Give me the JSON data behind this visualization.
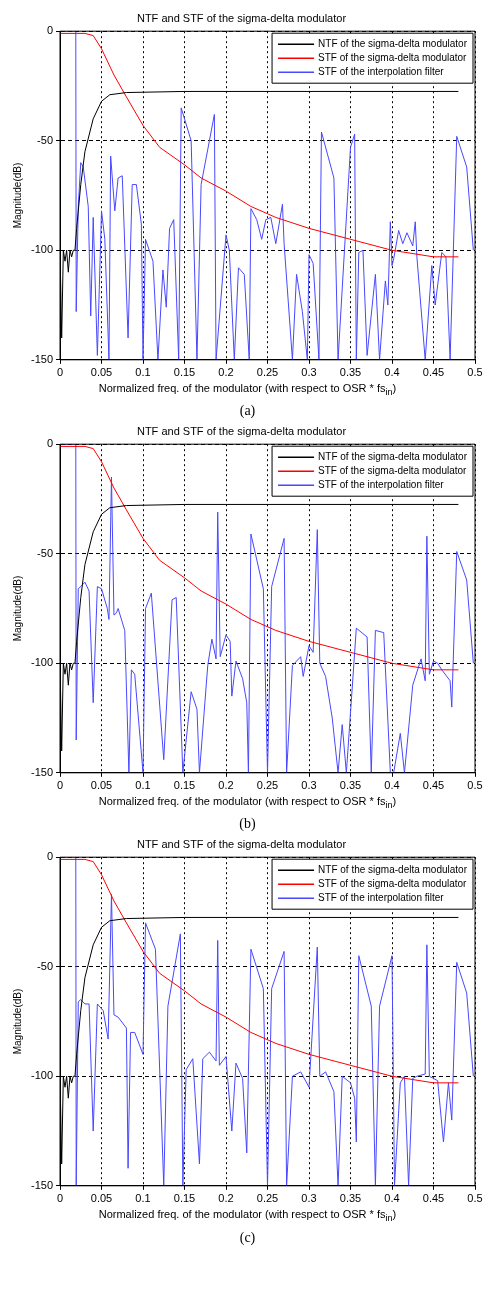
{
  "chart_data": [
    {
      "type": "line",
      "title": "NTF and STF of the sigma-delta modulator",
      "xlabel": "Normalized freq. of the modulator (with respect to OSR * fs$_{in}$)",
      "ylabel": "Magnitude(dB)",
      "xlim": [
        0,
        0.5
      ],
      "xticks": [
        0,
        0.05,
        0.1,
        0.15,
        0.2,
        0.25,
        0.3,
        0.35,
        0.4,
        0.45,
        0.5
      ],
      "ylim": [
        -150,
        0
      ],
      "yticks": [
        -150,
        -100,
        -50,
        0
      ],
      "grid": true,
      "legend": "top right",
      "marker": "none",
      "annotations": [
        "(a)"
      ],
      "series": [
        {
          "name": "NTF of the sigma-delta modulator",
          "color": "#000000",
          "x": [
            0,
            0.002,
            0.004,
            0.006,
            0.008,
            0.01,
            0.012,
            0.014,
            0.016,
            0.018,
            0.02,
            0.025,
            0.03,
            0.04,
            0.05,
            0.06,
            0.08,
            0.15,
            0.48
          ],
          "values": [
            -100,
            -140,
            -100,
            -105,
            -100,
            -110,
            -100,
            -103,
            -100,
            -100,
            -90,
            -70,
            -55,
            -40,
            -32,
            -29,
            -28,
            -27.5,
            -27.5
          ]
        },
        {
          "name": "STF of the sigma-delta modulator",
          "color": "#ff0000",
          "x": [
            0,
            0.03,
            0.04,
            0.05,
            0.065,
            0.08,
            0.1,
            0.12,
            0.15,
            0.17,
            0.2,
            0.23,
            0.26,
            0.3,
            0.35,
            0.4,
            0.45,
            0.48
          ],
          "values": [
            -1,
            -1,
            -2,
            -8,
            -20,
            -30,
            -43,
            -53,
            -61,
            -67,
            -73,
            -80,
            -85,
            -90,
            -95,
            -100,
            -103,
            -103
          ]
        },
        {
          "name": "STF of the interpolation filter",
          "color": "#4848ff",
          "x": [
            0,
            0.019,
            0.0195,
            0.022,
            0.025,
            0.028,
            0.034,
            0.037,
            0.04,
            0.045,
            0.05,
            0.054,
            0.059,
            0.061,
            0.066,
            0.07,
            0.075,
            0.082,
            0.087,
            0.092,
            0.098,
            0.1,
            0.103,
            0.112,
            0.118,
            0.124,
            0.128,
            0.132,
            0.137,
            0.143,
            0.146,
            0.158,
            0.165,
            0.17,
            0.186,
            0.188,
            0.2,
            0.204,
            0.21,
            0.215,
            0.222,
            0.228,
            0.23,
            0.237,
            0.243,
            0.248,
            0.254,
            0.26,
            0.268,
            0.27,
            0.28,
            0.285,
            0.292,
            0.298,
            0.3,
            0.305,
            0.312,
            0.315,
            0.33,
            0.335,
            0.35,
            0.355,
            0.357,
            0.36,
            0.365,
            0.37,
            0.38,
            0.385,
            0.392,
            0.395,
            0.398,
            0.4,
            0.402,
            0.408,
            0.413,
            0.418,
            0.425,
            0.428,
            0.43,
            0.44,
            0.448,
            0.452,
            0.46,
            0.465,
            0.47,
            0.478,
            0.49,
            0.498
          ],
          "values": [
            0,
            0,
            -128,
            -80,
            -60,
            -62,
            -80,
            -130,
            -85,
            -148,
            -82,
            -95,
            -150,
            -57,
            -82,
            -67,
            -66,
            -140,
            -70,
            -70,
            -88,
            -150,
            -95,
            -105,
            -150,
            -109,
            -126,
            -90,
            -86,
            -150,
            -35,
            -50,
            -150,
            -70,
            -38,
            -150,
            -93,
            -100,
            -150,
            -108,
            -111,
            -150,
            -81,
            -86,
            -95,
            -86,
            -85,
            -97,
            -79,
            -97,
            -150,
            -111,
            -128,
            -150,
            -102,
            -106,
            -150,
            -46,
            -67,
            -150,
            -53,
            -47,
            -150,
            -101,
            -100,
            -148,
            -111,
            -150,
            -114,
            -125,
            -87,
            -107,
            -104,
            -91,
            -97,
            -92,
            -98,
            -87,
            -103,
            -150,
            -107,
            -125,
            -101,
            -103,
            -150,
            -48,
            -62,
            -100
          ]
        }
      ]
    },
    {
      "type": "line",
      "title": "NTF and STF of the sigma-delta modulator",
      "xlabel": "Normalized freq. of the modulator (with respect to OSR * fs$_{in}$)",
      "ylabel": "Magnitude(dB)",
      "xlim": [
        0,
        0.5
      ],
      "xticks": [
        0,
        0.05,
        0.1,
        0.15,
        0.2,
        0.25,
        0.3,
        0.35,
        0.4,
        0.45,
        0.5
      ],
      "ylim": [
        -150,
        0
      ],
      "yticks": [
        -150,
        -100,
        -50,
        0
      ],
      "grid": true,
      "legend": "top right",
      "marker": "none",
      "annotations": [
        "(b)"
      ],
      "series": [
        {
          "name": "NTF of the sigma-delta modulator",
          "color": "#000000",
          "x": [
            0,
            0.002,
            0.004,
            0.006,
            0.008,
            0.01,
            0.012,
            0.014,
            0.016,
            0.018,
            0.02,
            0.025,
            0.03,
            0.04,
            0.05,
            0.06,
            0.08,
            0.15,
            0.48
          ],
          "values": [
            -100,
            -140,
            -100,
            -105,
            -100,
            -110,
            -100,
            -103,
            -100,
            -100,
            -90,
            -70,
            -55,
            -40,
            -32,
            -29,
            -28,
            -27.5,
            -27.5
          ]
        },
        {
          "name": "STF of the sigma-delta modulator",
          "color": "#ff0000",
          "x": [
            0,
            0.03,
            0.04,
            0.05,
            0.065,
            0.08,
            0.1,
            0.12,
            0.15,
            0.17,
            0.2,
            0.23,
            0.26,
            0.3,
            0.35,
            0.4,
            0.45,
            0.48
          ],
          "values": [
            -1,
            -1,
            -2,
            -8,
            -20,
            -30,
            -43,
            -53,
            -61,
            -67,
            -73,
            -80,
            -85,
            -90,
            -95,
            -100,
            -103,
            -103
          ]
        },
        {
          "name": "STF of the interpolation filter",
          "color": "#4848ff",
          "x": [
            0,
            0.019,
            0.0195,
            0.022,
            0.025,
            0.03,
            0.035,
            0.04,
            0.045,
            0.05,
            0.057,
            0.059,
            0.062,
            0.065,
            0.068,
            0.07,
            0.078,
            0.083,
            0.086,
            0.09,
            0.1,
            0.103,
            0.11,
            0.125,
            0.135,
            0.14,
            0.148,
            0.158,
            0.165,
            0.168,
            0.178,
            0.183,
            0.188,
            0.19,
            0.193,
            0.2,
            0.205,
            0.207,
            0.212,
            0.22,
            0.225,
            0.227,
            0.23,
            0.245,
            0.25,
            0.255,
            0.27,
            0.273,
            0.28,
            0.29,
            0.293,
            0.3,
            0.305,
            0.31,
            0.313,
            0.32,
            0.328,
            0.335,
            0.34,
            0.345,
            0.357,
            0.37,
            0.375,
            0.38,
            0.39,
            0.398,
            0.402,
            0.41,
            0.415,
            0.425,
            0.435,
            0.44,
            0.442,
            0.445,
            0.45,
            0.455,
            0.46,
            0.47,
            0.472,
            0.478,
            0.49,
            0.498
          ],
          "values": [
            0,
            0,
            -135,
            -66,
            -65,
            -63,
            -67,
            -118,
            -65,
            -66,
            -75,
            -80,
            -15,
            -78,
            -77,
            -75,
            -85,
            -150,
            -103,
            -105,
            -150,
            -75,
            -68,
            -144,
            -71,
            -70,
            -150,
            -113,
            -121,
            -150,
            -101,
            -89,
            -98,
            -31,
            -97,
            -87,
            -90,
            -115,
            -99,
            -107,
            -118,
            -150,
            -41,
            -66,
            -150,
            -65,
            -43,
            -150,
            -101,
            -97,
            -106,
            -92,
            -95,
            -39,
            -100,
            -106,
            -125,
            -150,
            -128,
            -150,
            -84,
            -88,
            -150,
            -85,
            -86,
            -150,
            -150,
            -132,
            -150,
            -110,
            -98,
            -108,
            -42,
            -105,
            -99,
            -100,
            -103,
            -108,
            -120,
            -49,
            -62,
            -100
          ]
        }
      ]
    },
    {
      "type": "line",
      "title": "NTF and STF of the sigma-delta modulator",
      "xlabel": "Normalized freq. of the modulator (with respect to OSR * fs$_{in}$)",
      "ylabel": "Magnitude(dB)",
      "xlim": [
        0,
        0.5
      ],
      "xticks": [
        0,
        0.05,
        0.1,
        0.15,
        0.2,
        0.25,
        0.3,
        0.35,
        0.4,
        0.45,
        0.5
      ],
      "ylim": [
        -150,
        0
      ],
      "yticks": [
        -150,
        -100,
        -50,
        0
      ],
      "grid": true,
      "legend": "top right",
      "marker": "none",
      "annotations": [
        "(c)"
      ],
      "series": [
        {
          "name": "NTF of the sigma-delta modulator",
          "color": "#000000",
          "x": [
            0,
            0.002,
            0.004,
            0.006,
            0.008,
            0.01,
            0.012,
            0.014,
            0.016,
            0.018,
            0.02,
            0.025,
            0.03,
            0.04,
            0.05,
            0.06,
            0.08,
            0.15,
            0.48
          ],
          "values": [
            -100,
            -140,
            -100,
            -105,
            -100,
            -110,
            -100,
            -103,
            -100,
            -100,
            -90,
            -70,
            -55,
            -40,
            -32,
            -29,
            -28,
            -27.5,
            -27.5
          ]
        },
        {
          "name": "STF of the sigma-delta modulator",
          "color": "#ff0000",
          "x": [
            0,
            0.03,
            0.04,
            0.05,
            0.065,
            0.08,
            0.1,
            0.12,
            0.15,
            0.17,
            0.2,
            0.23,
            0.26,
            0.3,
            0.35,
            0.4,
            0.45,
            0.48
          ],
          "values": [
            -1,
            -1,
            -2,
            -8,
            -20,
            -30,
            -43,
            -53,
            -61,
            -67,
            -73,
            -80,
            -85,
            -90,
            -95,
            -100,
            -103,
            -103
          ]
        },
        {
          "name": "STF of the interpolation filter",
          "color": "#4848ff",
          "x": [
            0,
            0.019,
            0.0195,
            0.022,
            0.025,
            0.03,
            0.035,
            0.04,
            0.045,
            0.052,
            0.058,
            0.062,
            0.065,
            0.07,
            0.08,
            0.082,
            0.085,
            0.09,
            0.1,
            0.103,
            0.115,
            0.125,
            0.13,
            0.145,
            0.148,
            0.152,
            0.16,
            0.168,
            0.172,
            0.18,
            0.188,
            0.19,
            0.192,
            0.2,
            0.207,
            0.212,
            0.22,
            0.225,
            0.23,
            0.245,
            0.25,
            0.255,
            0.27,
            0.273,
            0.28,
            0.29,
            0.3,
            0.31,
            0.313,
            0.32,
            0.33,
            0.335,
            0.34,
            0.35,
            0.355,
            0.357,
            0.36,
            0.375,
            0.38,
            0.385,
            0.4,
            0.403,
            0.41,
            0.415,
            0.42,
            0.425,
            0.43,
            0.44,
            0.442,
            0.445,
            0.455,
            0.462,
            0.468,
            0.472,
            0.478,
            0.49,
            0.498
          ],
          "values": [
            0,
            0,
            -150,
            -66,
            -65,
            -67,
            -67,
            -125,
            -67,
            -70,
            -83,
            -17,
            -72,
            -73,
            -78,
            -142,
            -80,
            -80,
            -90,
            -30,
            -42,
            -150,
            -68,
            -35,
            -150,
            -97,
            -92,
            -140,
            -92,
            -89,
            -93,
            -38,
            -95,
            -91,
            -125,
            -94,
            -101,
            -135,
            -42,
            -60,
            -150,
            -60,
            -43,
            -150,
            -100,
            -98,
            -105,
            -41,
            -100,
            -98,
            -107,
            -150,
            -100,
            -103,
            -110,
            -130,
            -45,
            -68,
            -150,
            -68,
            -45,
            -150,
            -103,
            -100,
            -150,
            -101,
            -100,
            -99,
            -40,
            -100,
            -102,
            -130,
            -103,
            -120,
            -48,
            -62,
            -100
          ]
        }
      ]
    }
  ]
}
